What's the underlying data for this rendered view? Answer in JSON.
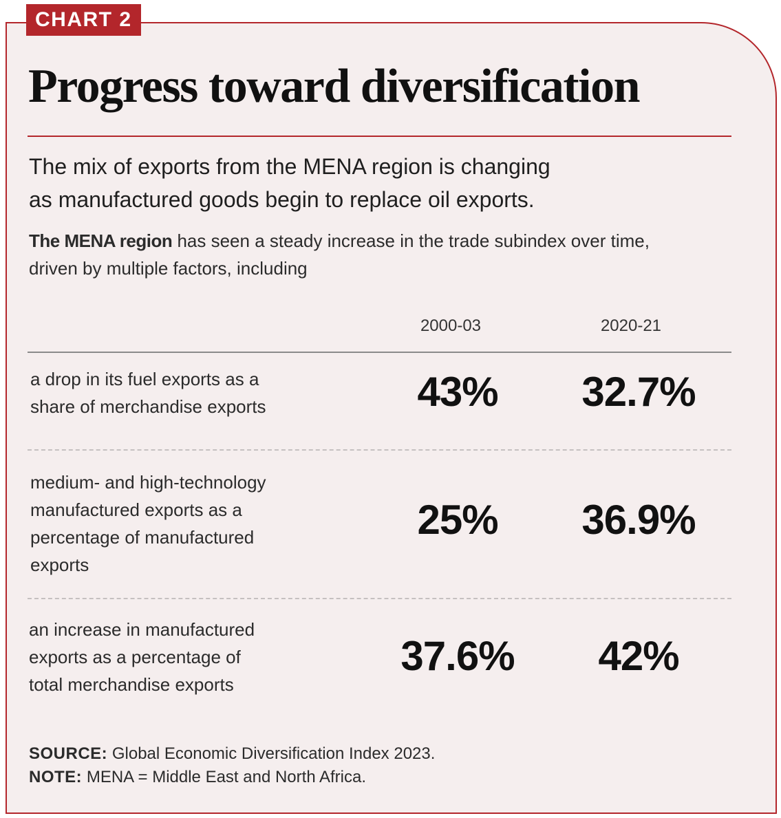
{
  "label": "CHART 2",
  "title": "Progress toward diversification",
  "subtitle_lines": [
    "The mix of exports from the MENA region is changing",
    "as manufactured goods begin to replace oil exports."
  ],
  "intro": {
    "bold": "The MENA region",
    "line1_rest": " has seen a steady increase in the trade subindex over time,",
    "line2": "driven by multiple factors, including"
  },
  "chart_data": {
    "type": "table",
    "title": "Progress toward diversification",
    "columns": [
      "2000-03",
      "2020-21"
    ],
    "rows": [
      {
        "label_lines": [
          "a drop in its fuel exports as a",
          "share of merchandise exports"
        ],
        "values": [
          "43%",
          "32.7%"
        ]
      },
      {
        "label_lines": [
          "medium- and high-technology",
          "manufactured exports as a",
          "percentage of manufactured",
          "exports"
        ],
        "values": [
          "25%",
          "36.9%"
        ]
      },
      {
        "label_lines": [
          "an increase in manufactured",
          "exports as a percentage of",
          "total merchandise exports"
        ],
        "values": [
          "37.6%",
          "42%"
        ]
      }
    ]
  },
  "source": {
    "label": "SOURCE:",
    "text": " Global Economic Diversification Index 2023."
  },
  "note": {
    "label": "NOTE:",
    "text": " MENA = Middle East and North Africa."
  },
  "colors": {
    "accent": "#b3262b",
    "background": "#f5eeee"
  }
}
